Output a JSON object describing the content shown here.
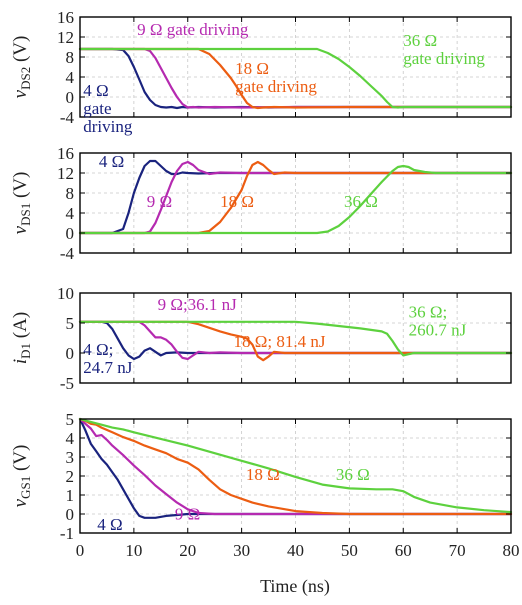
{
  "colors": {
    "4_ohm": "#1a237e",
    "9_ohm": "#b52ab0",
    "18_ohm": "#ec5d12",
    "36_ohm": "#5dd13e"
  },
  "chart_data": {
    "type": "line",
    "shared_x": {
      "label": "Time (ns)",
      "range": [
        0,
        80
      ],
      "ticks": [
        "0",
        "10",
        "20",
        "30",
        "40",
        "50",
        "60",
        "70",
        "80"
      ]
    },
    "grid": true,
    "panels": [
      {
        "id": "vds2",
        "ylabel": {
          "var": "v",
          "sub": "DS2",
          "unit": " (V)"
        },
        "ylim": [
          -4,
          16
        ],
        "yticks": [
          "16",
          "12",
          "8",
          "4",
          "0",
          "-4"
        ],
        "series": [
          {
            "key": "4_ohm",
            "x": [
              0,
              6,
              8,
              9,
              10,
              11,
              12,
              13,
              14,
              15,
              16,
              17,
              18,
              19,
              20,
              22,
              25,
              30,
              35,
              40,
              50,
              60,
              70,
              80
            ],
            "y": [
              9.6,
              9.6,
              9.4,
              8.2,
              6,
              3.5,
              1,
              -0.6,
              -1.6,
              -2,
              -2.1,
              -2,
              -2.2,
              -2,
              -2.1,
              -2,
              -2.1,
              -2,
              -2.1,
              -2,
              -2,
              -2,
              -2,
              -2
            ]
          },
          {
            "key": "9_ohm",
            "x": [
              0,
              12,
              13,
              14,
              15,
              16,
              17,
              18,
              19,
              20,
              21,
              22,
              25,
              30,
              40,
              50,
              60,
              70,
              80
            ],
            "y": [
              9.6,
              9.6,
              9.2,
              7.8,
              5.8,
              3.8,
              1.8,
              0,
              -1.4,
              -2.1,
              -2,
              -2.1,
              -2,
              -2.1,
              -2,
              -2,
              -2,
              -2,
              -2
            ]
          },
          {
            "key": "18_ohm",
            "x": [
              0,
              22,
              24,
              26,
              28,
              29,
              30,
              31,
              32,
              33,
              34,
              36,
              40,
              50,
              60,
              70,
              80
            ],
            "y": [
              9.6,
              9.6,
              8.6,
              6.4,
              3.8,
              2.2,
              0.4,
              -1.2,
              -2,
              -2.2,
              -2.1,
              -2,
              -2.1,
              -2,
              -2,
              -2,
              -2
            ]
          },
          {
            "key": "36_ohm",
            "x": [
              0,
              44,
              46,
              48,
              50,
              52,
              54,
              56,
              57,
              58,
              59,
              60,
              65,
              70,
              80
            ],
            "y": [
              9.6,
              9.6,
              8.8,
              7.6,
              6,
              4.2,
              2.2,
              0.2,
              -1,
              -2,
              -2.1,
              -2,
              -2,
              -2,
              -2
            ]
          }
        ],
        "labels": [
          {
            "key": "4_ohm",
            "lines": [
              "4 Ω",
              "gate",
              "driving"
            ],
            "x": 0.6,
            "y": 0.2
          },
          {
            "key": "9_ohm",
            "lines": [
              "9 Ω gate driving"
            ],
            "x": 10.6,
            "y": 12.4
          },
          {
            "key": "18_ohm",
            "lines": [
              "18 Ω",
              "gate driving"
            ],
            "x": 28.8,
            "y": 4.6
          },
          {
            "key": "36_ohm",
            "lines": [
              "36 Ω",
              "gate driving"
            ],
            "x": 60,
            "y": 10.2
          }
        ]
      },
      {
        "id": "vds1",
        "ylabel": {
          "var": "v",
          "sub": "DS1",
          "unit": " (V)"
        },
        "ylim": [
          -4,
          16
        ],
        "yticks": [
          "16",
          "12",
          "8",
          "4",
          "0",
          "-4"
        ],
        "series": [
          {
            "key": "4_ohm",
            "x": [
              0,
              6,
              8,
              9,
              10,
              11,
              12,
              13,
              14,
              15,
              16,
              17,
              18,
              19,
              20,
              22,
              25,
              30,
              40,
              50,
              60,
              70,
              80
            ],
            "y": [
              0,
              0,
              0.8,
              4,
              8,
              11,
              13.4,
              14.4,
              14.4,
              13.4,
              12.4,
              11.8,
              11.8,
              12.1,
              12,
              11.9,
              12,
              12,
              12,
              12,
              12,
              12,
              12
            ]
          },
          {
            "key": "9_ohm",
            "x": [
              0,
              12,
              13,
              14,
              15,
              16,
              17,
              18,
              19,
              20,
              21,
              22,
              24,
              26,
              30,
              40,
              50,
              60,
              70,
              80
            ],
            "y": [
              0,
              0,
              0.3,
              2,
              4.6,
              7.4,
              10.2,
              12.4,
              13.8,
              14.2,
              13.6,
              12.6,
              11.8,
              12.1,
              12,
              12,
              12,
              12,
              12,
              12
            ]
          },
          {
            "key": "18_ohm",
            "x": [
              0,
              22,
              24,
              26,
              28,
              30,
              31,
              32,
              33,
              34,
              35,
              36,
              38,
              40,
              50,
              60,
              70,
              80
            ],
            "y": [
              0,
              0,
              0.4,
              2.2,
              5,
              8.6,
              11.4,
              13.6,
              14.2,
              13.6,
              12.6,
              11.8,
              12.1,
              12,
              12,
              12,
              12,
              12
            ]
          },
          {
            "key": "36_ohm",
            "x": [
              0,
              44,
              46,
              48,
              50,
              52,
              54,
              56,
              58,
              59,
              60,
              61,
              62,
              64,
              66,
              70,
              80
            ],
            "y": [
              0,
              0,
              0.3,
              1.4,
              3.2,
              5.4,
              7.8,
              10.2,
              12.4,
              13.2,
              13.4,
              13.2,
              12.6,
              12.2,
              12,
              12,
              12
            ]
          }
        ],
        "labels": [
          {
            "key": "4_ohm",
            "lines": [
              "4 Ω"
            ],
            "x": 3.5,
            "y": 13.2
          },
          {
            "key": "9_ohm",
            "lines": [
              "9 Ω"
            ],
            "x": 12.4,
            "y": 5.2
          },
          {
            "key": "18_ohm",
            "lines": [
              "18 Ω"
            ],
            "x": 26,
            "y": 5.2
          },
          {
            "key": "36_ohm",
            "lines": [
              "36 Ω"
            ],
            "x": 49,
            "y": 5.2
          }
        ]
      },
      {
        "id": "id1",
        "ylabel": {
          "var": "i",
          "sub": "D1",
          "unit": " (A)"
        },
        "ylim": [
          -5,
          10
        ],
        "yticks": [
          "10",
          "5",
          "0",
          "-5"
        ],
        "series": [
          {
            "key": "4_ohm",
            "x": [
              0,
              4,
              5,
              6,
              7,
              8,
              9,
              10,
              11,
              12,
              13,
              14,
              15,
              16,
              18,
              20,
              22,
              25,
              30,
              40,
              50,
              60,
              70,
              80
            ],
            "y": [
              5.2,
              5.2,
              5,
              4,
              2.4,
              0.8,
              -0.4,
              -1,
              -0.6,
              0.4,
              0.8,
              0.2,
              -0.4,
              0,
              0.1,
              0,
              0,
              0,
              0,
              0,
              0,
              0,
              0,
              0
            ]
          },
          {
            "key": "9_ohm",
            "x": [
              0,
              11,
              12,
              13,
              14,
              15,
              16,
              17,
              18,
              19,
              20,
              21,
              22,
              24,
              26,
              30,
              40,
              50,
              60,
              70,
              80
            ],
            "y": [
              5.2,
              5.2,
              4.6,
              3.6,
              2.6,
              2.6,
              2.2,
              1.4,
              0.2,
              -0.8,
              -1,
              -0.4,
              0.2,
              0,
              0.1,
              0,
              0,
              0,
              0,
              0,
              0
            ]
          },
          {
            "key": "18_ohm",
            "x": [
              0,
              20,
              22,
              24,
              26,
              28,
              30,
              31,
              32,
              33,
              34,
              35,
              36,
              38,
              40,
              50,
              60,
              70,
              80
            ],
            "y": [
              5.2,
              5.2,
              4.8,
              4.2,
              3.6,
              3.1,
              2.7,
              2.4,
              1.4,
              -0.6,
              -1.2,
              -0.6,
              0.2,
              0,
              0,
              0,
              0,
              0,
              0
            ]
          },
          {
            "key": "36_ohm",
            "x": [
              0,
              40,
              44,
              48,
              52,
              56,
              57,
              58,
              59,
              60,
              61,
              62,
              64,
              70,
              80
            ],
            "y": [
              5.2,
              5.2,
              4.9,
              4.5,
              4.1,
              3.6,
              3.2,
              2,
              0.6,
              -0.4,
              -0.2,
              0,
              0,
              0,
              0
            ]
          }
        ],
        "labels": [
          {
            "key": "4_ohm",
            "lines": [
              "4 Ω;",
              "24.7 nJ"
            ],
            "x": 0.6,
            "y": -0.3
          },
          {
            "key": "9_ohm",
            "lines": [
              "9 Ω;36.1 nJ"
            ],
            "x": 14.4,
            "y": 7.2
          },
          {
            "key": "18_ohm",
            "lines": [
              "18 Ω; 81.4 nJ"
            ],
            "x": 28.5,
            "y": 1
          },
          {
            "key": "36_ohm",
            "lines": [
              "36 Ω;",
              "260.7 nJ"
            ],
            "x": 61,
            "y": 5.9
          }
        ]
      },
      {
        "id": "vgs1",
        "ylabel": {
          "var": "v",
          "sub": "GS1",
          "unit": " (V)"
        },
        "ylim": [
          -1,
          5
        ],
        "yticks": [
          "5",
          "4",
          "3",
          "2",
          "1",
          "0",
          "-1"
        ],
        "series": [
          {
            "key": "4_ohm",
            "x": [
              0,
              1,
              2,
              3,
              4,
              5,
              6,
              7,
              8,
              9,
              10,
              11,
              12,
              14,
              16,
              18,
              20,
              25,
              30,
              40,
              50,
              60,
              70,
              80
            ],
            "y": [
              5,
              4.4,
              3.7,
              3.3,
              2.9,
              2.6,
              2.2,
              1.8,
              1.3,
              0.8,
              0.3,
              -0.1,
              -0.2,
              -0.2,
              -0.1,
              -0.05,
              0,
              0,
              0,
              0,
              0,
              0,
              0,
              0
            ]
          },
          {
            "key": "9_ohm",
            "x": [
              0,
              1,
              2,
              3,
              4,
              5,
              6,
              8,
              10,
              12,
              14,
              16,
              18,
              20,
              22,
              25,
              30,
              40,
              50,
              60,
              70,
              80
            ],
            "y": [
              5,
              4.75,
              4.5,
              4.1,
              4.15,
              3.9,
              3.6,
              3.1,
              2.55,
              2.05,
              1.5,
              1.05,
              0.6,
              0.25,
              0.05,
              0,
              0,
              0,
              0,
              0,
              0,
              0
            ]
          },
          {
            "key": "18_ohm",
            "x": [
              0,
              1,
              2,
              3,
              4,
              6,
              8,
              10,
              12,
              14,
              16,
              18,
              20,
              22,
              24,
              26,
              28,
              30,
              32,
              35,
              40,
              45,
              50,
              60,
              70,
              80
            ],
            "y": [
              5,
              4.9,
              4.75,
              4.7,
              4.55,
              4.3,
              4.05,
              3.85,
              3.6,
              3.4,
              3.2,
              2.9,
              2.7,
              2.35,
              1.8,
              1.3,
              1,
              0.8,
              0.6,
              0.4,
              0.15,
              0.05,
              0,
              0,
              0,
              0
            ]
          },
          {
            "key": "36_ohm",
            "x": [
              0,
              2,
              4,
              6,
              8,
              10,
              15,
              20,
              25,
              30,
              35,
              40,
              45,
              50,
              55,
              58,
              60,
              62,
              65,
              70,
              75,
              80
            ],
            "y": [
              5,
              4.85,
              4.7,
              4.55,
              4.45,
              4.3,
              3.95,
              3.6,
              3.2,
              2.8,
              2.4,
              1.95,
              1.55,
              1.35,
              1.3,
              1.3,
              1.2,
              0.9,
              0.6,
              0.35,
              0.2,
              0.1
            ]
          }
        ],
        "labels": [
          {
            "key": "4_ohm",
            "lines": [
              "4 Ω"
            ],
            "x": 3.2,
            "y": -0.85
          },
          {
            "key": "9_ohm",
            "lines": [
              "9 Ω"
            ],
            "x": 17.6,
            "y": -0.3
          },
          {
            "key": "18_ohm",
            "lines": [
              "18 Ω"
            ],
            "x": 30.8,
            "y": 1.8
          },
          {
            "key": "36_ohm",
            "lines": [
              "36 Ω"
            ],
            "x": 47.5,
            "y": 1.8
          }
        ]
      }
    ]
  }
}
